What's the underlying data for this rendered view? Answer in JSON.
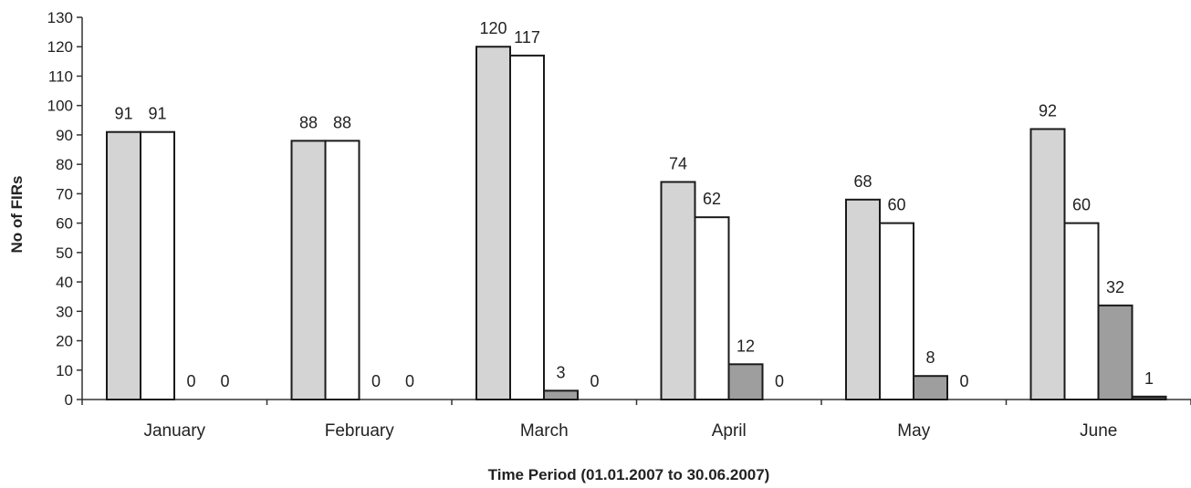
{
  "chart_data": {
    "type": "bar",
    "title": "",
    "xlabel": "Time Period (01.01.2007 to 30.06.2007)",
    "ylabel": "No of FIRs",
    "ylim": [
      0,
      130
    ],
    "yticks": [
      0,
      10,
      20,
      30,
      40,
      50,
      60,
      70,
      80,
      90,
      100,
      110,
      120,
      130
    ],
    "grid": false,
    "legend": "none",
    "categories": [
      "January",
      "February",
      "March",
      "April",
      "May",
      "June"
    ],
    "series": [
      {
        "values": [
          91,
          88,
          120,
          74,
          68,
          92
        ],
        "color": "#d4d4d4"
      },
      {
        "values": [
          91,
          88,
          117,
          62,
          60,
          60
        ],
        "color": "#ffffff"
      },
      {
        "values": [
          0,
          0,
          3,
          12,
          8,
          32
        ],
        "color": "#9e9e9e"
      },
      {
        "values": [
          0,
          0,
          0,
          0,
          0,
          1
        ],
        "color": "#4a4a4a"
      }
    ]
  }
}
